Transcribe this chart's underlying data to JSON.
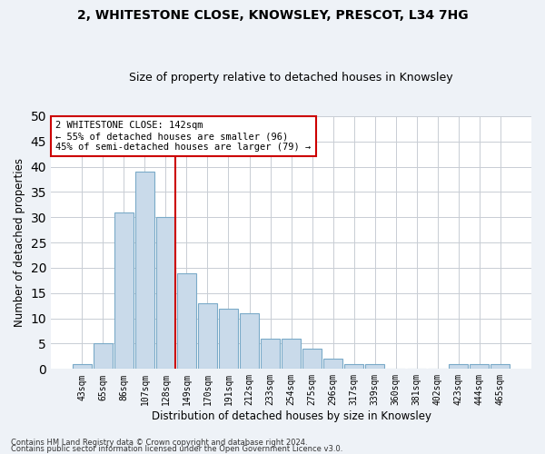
{
  "title": "2, WHITESTONE CLOSE, KNOWSLEY, PRESCOT, L34 7HG",
  "subtitle": "Size of property relative to detached houses in Knowsley",
  "xlabel": "Distribution of detached houses by size in Knowsley",
  "ylabel": "Number of detached properties",
  "bar_color": "#c9daea",
  "bar_edge_color": "#7aaac8",
  "categories": [
    "43sqm",
    "65sqm",
    "86sqm",
    "107sqm",
    "128sqm",
    "149sqm",
    "170sqm",
    "191sqm",
    "212sqm",
    "233sqm",
    "254sqm",
    "275sqm",
    "296sqm",
    "317sqm",
    "339sqm",
    "360sqm",
    "381sqm",
    "402sqm",
    "423sqm",
    "444sqm",
    "465sqm"
  ],
  "values": [
    1,
    5,
    31,
    39,
    30,
    19,
    13,
    12,
    11,
    6,
    6,
    4,
    2,
    1,
    1,
    0,
    0,
    0,
    1,
    1,
    1
  ],
  "annotation_text_line1": "2 WHITESTONE CLOSE: 142sqm",
  "annotation_text_line2": "← 55% of detached houses are smaller (96)",
  "annotation_text_line3": "45% of semi-detached houses are larger (79) →",
  "vline_index": 4,
  "vline_color": "#cc0000",
  "ylim": [
    0,
    50
  ],
  "yticks": [
    0,
    5,
    10,
    15,
    20,
    25,
    30,
    35,
    40,
    45,
    50
  ],
  "footnote1": "Contains HM Land Registry data © Crown copyright and database right 2024.",
  "footnote2": "Contains public sector information licensed under the Open Government Licence v3.0.",
  "background_color": "#eef2f7",
  "plot_bg_color": "#ffffff",
  "grid_color": "#c8cdd4"
}
